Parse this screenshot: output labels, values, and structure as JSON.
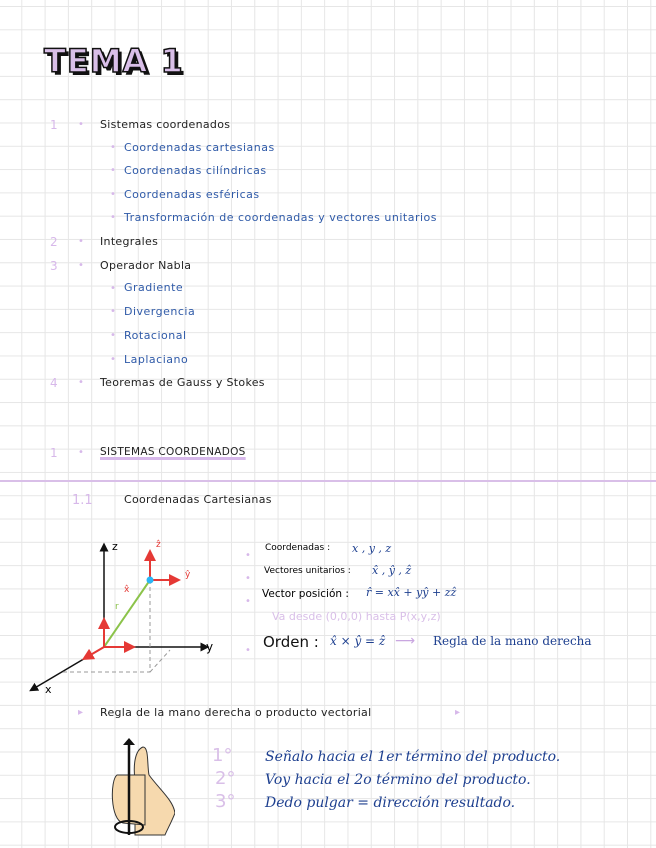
{
  "title": "TEMA 1",
  "index": [
    {
      "num": "1",
      "label": "Sistemas coordenados",
      "sub": [
        "Coordenadas cartesianas",
        "Coordenadas cilíndricas",
        "Coordenadas esféricas",
        "Transformación de coordenadas y vectores unitarios"
      ]
    },
    {
      "num": "2",
      "label": "Integrales",
      "sub": []
    },
    {
      "num": "3",
      "label": "Operador Nabla",
      "sub": [
        "Gradiente",
        "Divergencia",
        "Rotacional",
        "Laplaciano"
      ]
    },
    {
      "num": "4",
      "label": "Teoremas de Gauss y Stokes",
      "sub": []
    }
  ],
  "section": {
    "num": "1",
    "title": "SISTEMAS COORDENADOS"
  },
  "subsection": {
    "num": "1.1",
    "title": "Coordenadas Cartesianas"
  },
  "diagram": {
    "axis_x": "x",
    "axis_y": "y",
    "axis_z": "z",
    "vec_r": "r",
    "unit_x": "x̂",
    "unit_y": "ŷ",
    "unit_z": "ẑ"
  },
  "notes": {
    "coords_label": "Coordenadas :",
    "coords_value": "x , y , z",
    "units_label": "Vectores unitarios :",
    "units_value": "x̂ , ŷ , ẑ",
    "pos_label": "Vector posición :",
    "pos_value": "r̂ = xx̂ + yŷ + zẑ",
    "pos_note": "Va desde (0,0,0) hasta P(x,y,z)",
    "order_label": "Orden :",
    "order_value": "x̂ × ŷ = ẑ",
    "order_result": "Regla de la mano derecha"
  },
  "rule": {
    "title": "Regla de la mano derecha o producto vectorial",
    "steps": [
      {
        "num": "1°",
        "text": "Señalo hacia el 1er término del producto."
      },
      {
        "num": "2°",
        "text": "Voy hacia el 2o término del producto."
      },
      {
        "num": "3°",
        "text": "Dedo pulgar = dirección resultado."
      }
    ]
  },
  "colors": {
    "accent": "#d7b8ea",
    "blue": "#2f5aa8",
    "red": "#e53935",
    "green": "#8bc34a"
  }
}
